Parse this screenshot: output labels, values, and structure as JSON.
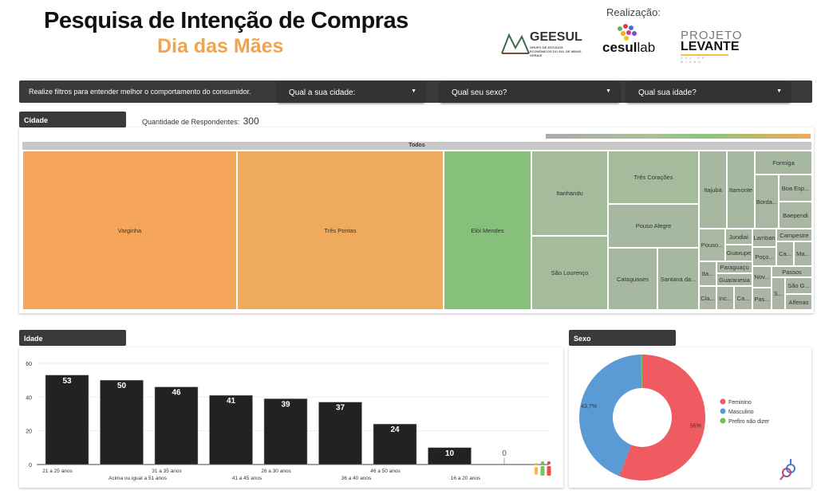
{
  "header": {
    "title": "Pesquisa de Intenção de Compras",
    "subtitle": "Dia das Mães",
    "realizacao": "Realização:"
  },
  "logos": {
    "geesul": "GEESUL",
    "geesul_sub": "GRUPO DE ESTUDOS ECONÔMICOS DO SUL DE MINAS GERAIS",
    "cesul_a": "cesul",
    "cesul_b": "lab",
    "levante_a": "PROJETO",
    "levante_b": "LEVANTE",
    "levante_c": "SUL DE MINAS"
  },
  "filters": {
    "intro": "Realize filtros para entender melhor o comportamento do consumidor.",
    "city": "Qual a sua cidade:",
    "sex": "Qual seu sexo?",
    "age": "Qual sua idade?"
  },
  "cidade": {
    "header": "Cidade",
    "respondents_label": "Quantidade de Respondentes:",
    "respondents": "300",
    "root": "Todos",
    "cells": [
      "Varginha",
      "Três Pontas",
      "Elói Mendes",
      "Itanhandu",
      "São Lourenço",
      "Três Corações",
      "Pouso Alegre",
      "Cataguases",
      "Santana da...",
      "Itajubá",
      "Itamonte",
      "Formiga",
      "Borda...",
      "Boa Esp...",
      "Baependi",
      "Pouso...",
      "Jundiaí",
      "Guaxupe",
      "Lambari",
      "Poço...",
      "Campestre",
      "Ca...",
      "Ma...",
      "Ita...",
      "Paraguaçu",
      "Guaranesia",
      "Cla...",
      "Inc...",
      "Ca...",
      "Nov...",
      "Pas...",
      "Passos",
      "S...",
      "São G...",
      "Alfenas"
    ],
    "colors": {
      "Varginha": "#f5a65b",
      "Três Pontas": "#eeab5e",
      "Elói Mendes": "#86c07a",
      "other": "#aab5a5"
    }
  },
  "idade": {
    "header": "Idade"
  },
  "sexo": {
    "header": "Sexo"
  },
  "chart_data": [
    {
      "type": "bar",
      "categories": [
        "21 a 25 anos",
        "Acima ou igual a 51 anos",
        "31 a 35 anos",
        "41 a 45 anos",
        "26 a 30 anos",
        "36 a 40 anos",
        "46 a 50 anos",
        "16 a 20 anos",
        ""
      ],
      "values": [
        53,
        50,
        46,
        41,
        39,
        37,
        24,
        10,
        0
      ],
      "ylim": [
        0,
        60
      ],
      "yticks": [
        0,
        20,
        40,
        60
      ],
      "grid": true,
      "color": "#222222"
    },
    {
      "type": "pie",
      "donut": true,
      "labels": [
        "Feminino",
        "Masculino",
        "Prefiro não dizer"
      ],
      "values": [
        56,
        43.7,
        0.3
      ],
      "value_labels": [
        "56%",
        "43,7%",
        ""
      ],
      "colors": [
        "#f05a61",
        "#5b9bd5",
        "#70c05a"
      ],
      "legend": "right"
    }
  ]
}
